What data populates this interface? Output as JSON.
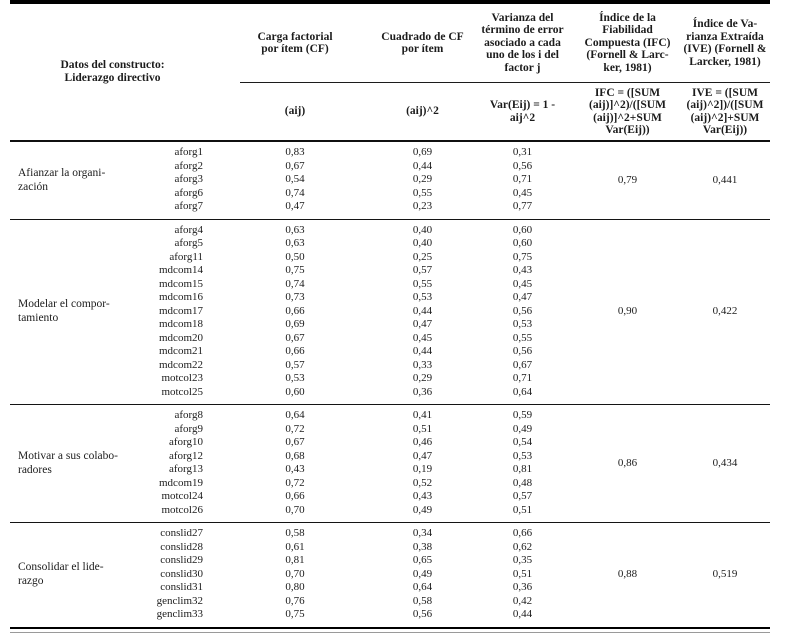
{
  "page": {
    "background": "#ffffff",
    "text_color": "#1c1c1c"
  },
  "table": {
    "construct_header": "Datos del constructo:\nLiderazgo directivo",
    "columns": [
      {
        "label": "Carga factorial\npor ítem (CF)",
        "formula": "(aij)"
      },
      {
        "label": "Cuadrado de CF\npor ítem",
        "formula": "(aij)^2"
      },
      {
        "label": "Varianza del\ntérmino de error\nasociado a cada\nuno de los i del\nfactor j",
        "formula": "Var(Eij) = 1 -\naij^2"
      },
      {
        "label": "Índice de la\nFiabilidad\nCompuesta (IFC)\n(Fornell & Larc-\nker, 1981)",
        "formula": "IFC = ([SUM\n(aij)]^2)/([SUM\n(aij)]^2+SUM\nVar(Eij))"
      },
      {
        "label": "Índice de Va-\nrianza Extraída\n(IVE) (Fornell &\nLarcker, 1981)",
        "formula": "IVE = ([SUM\n(aij)^2])/([SUM\n(aij)^2]+SUM\nVar(Eij))"
      }
    ],
    "groups": [
      {
        "label": "Afianzar la organi-\nzación",
        "ifc": "0,79",
        "ive": "0,441",
        "items": [
          {
            "name": "aforg1",
            "cf": "0,83",
            "cf2": "0,69",
            "var": "0,31"
          },
          {
            "name": "aforg2",
            "cf": "0,67",
            "cf2": "0,44",
            "var": "0,56"
          },
          {
            "name": "aforg3",
            "cf": "0,54",
            "cf2": "0,29",
            "var": "0,71"
          },
          {
            "name": "aforg6",
            "cf": "0,74",
            "cf2": "0,55",
            "var": "0,45"
          },
          {
            "name": "aforg7",
            "cf": "0,47",
            "cf2": "0,23",
            "var": "0,77"
          }
        ]
      },
      {
        "label": "Modelar el compor-\ntamiento",
        "ifc": "0,90",
        "ive": "0,422",
        "items": [
          {
            "name": "aforg4",
            "cf": "0,63",
            "cf2": "0,40",
            "var": "0,60"
          },
          {
            "name": "aforg5",
            "cf": "0,63",
            "cf2": "0,40",
            "var": "0,60"
          },
          {
            "name": "aforg11",
            "cf": "0,50",
            "cf2": "0,25",
            "var": "0,75"
          },
          {
            "name": "mdcom14",
            "cf": "0,75",
            "cf2": "0,57",
            "var": "0,43"
          },
          {
            "name": "mdcom15",
            "cf": "0,74",
            "cf2": "0,55",
            "var": "0,45"
          },
          {
            "name": "mdcom16",
            "cf": "0,73",
            "cf2": "0,53",
            "var": "0,47"
          },
          {
            "name": "mdcom17",
            "cf": "0,66",
            "cf2": "0,44",
            "var": "0,56"
          },
          {
            "name": "mdcom18",
            "cf": "0,69",
            "cf2": "0,47",
            "var": "0,53"
          },
          {
            "name": "mdcom20",
            "cf": "0,67",
            "cf2": "0,45",
            "var": "0,55"
          },
          {
            "name": "mdcom21",
            "cf": "0,66",
            "cf2": "0,44",
            "var": "0,56"
          },
          {
            "name": "mdcom22",
            "cf": "0,57",
            "cf2": "0,33",
            "var": "0,67"
          },
          {
            "name": "motcol23",
            "cf": "0,53",
            "cf2": "0,29",
            "var": "0,71"
          },
          {
            "name": "motcol25",
            "cf": "0,60",
            "cf2": "0,36",
            "var": "0,64"
          }
        ]
      },
      {
        "label": "Motivar a sus colabo-\nradores",
        "ifc": "0,86",
        "ive": "0,434",
        "items": [
          {
            "name": "aforg8",
            "cf": "0,64",
            "cf2": "0,41",
            "var": "0,59"
          },
          {
            "name": "aforg9",
            "cf": "0,72",
            "cf2": "0,51",
            "var": "0,49"
          },
          {
            "name": "aforg10",
            "cf": "0,67",
            "cf2": "0,46",
            "var": "0,54"
          },
          {
            "name": "aforg12",
            "cf": "0,68",
            "cf2": "0,47",
            "var": "0,53"
          },
          {
            "name": "aforg13",
            "cf": "0,43",
            "cf2": "0,19",
            "var": "0,81"
          },
          {
            "name": "mdcom19",
            "cf": "0,72",
            "cf2": "0,52",
            "var": "0,48"
          },
          {
            "name": "motcol24",
            "cf": "0,66",
            "cf2": "0,43",
            "var": "0,57"
          },
          {
            "name": "motcol26",
            "cf": "0,70",
            "cf2": "0,49",
            "var": "0,51"
          }
        ]
      },
      {
        "label": "Consolidar el lide-\nrazgo",
        "ifc": "0,88",
        "ive": "0,519",
        "items": [
          {
            "name": "conslid27",
            "cf": "0,58",
            "cf2": "0,34",
            "var": "0,66"
          },
          {
            "name": "conslid28",
            "cf": "0,61",
            "cf2": "0,38",
            "var": "0,62"
          },
          {
            "name": "conslid29",
            "cf": "0,81",
            "cf2": "0,65",
            "var": "0,35"
          },
          {
            "name": "conslid30",
            "cf": "0,70",
            "cf2": "0,49",
            "var": "0,51"
          },
          {
            "name": "conslid31",
            "cf": "0,80",
            "cf2": "0,64",
            "var": "0,36"
          },
          {
            "name": "genclim32",
            "cf": "0,76",
            "cf2": "0,58",
            "var": "0,42"
          },
          {
            "name": "genclim33",
            "cf": "0,75",
            "cf2": "0,56",
            "var": "0,44"
          }
        ]
      }
    ]
  }
}
